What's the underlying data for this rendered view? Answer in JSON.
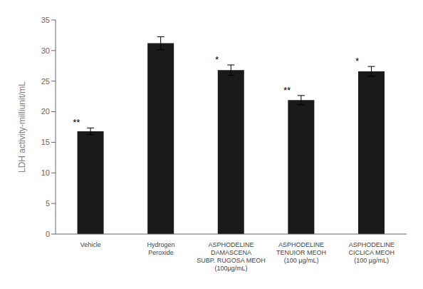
{
  "chart_data": {
    "type": "bar",
    "categories": [
      "Vehicle",
      "Hydrogen\nPeroxide",
      "ASPHODELINE\nDAMASCENA\nSUBP. RUGOSA MEOH\n(100µg/mL)",
      "ASPHODELINE\nTENUIOR MEOH\n(100 µg/mL)",
      "ASPHODELINE\nCICLICA MEOH\n(100 µg/mL)"
    ],
    "values": [
      16.8,
      31.2,
      26.8,
      21.9,
      26.6
    ],
    "errors": [
      0.55,
      1.05,
      0.85,
      0.75,
      0.8
    ],
    "significance": [
      "**",
      null,
      "*",
      "**",
      "*"
    ],
    "color": "#1a1a1a",
    "ylabel": "LDH activity-milliunit/mL",
    "ylim": [
      0,
      35
    ],
    "yticks": [
      0,
      5,
      10,
      15,
      20,
      25,
      30,
      35
    ],
    "grid": false
  }
}
